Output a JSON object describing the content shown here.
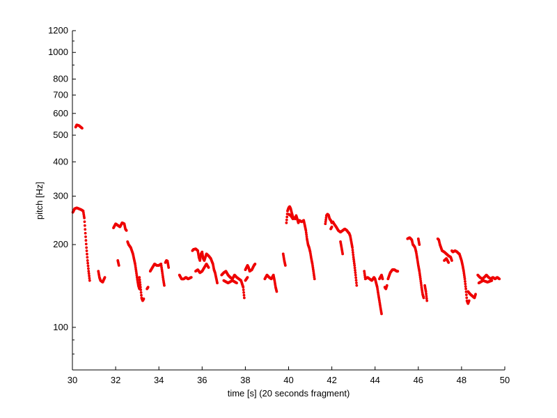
{
  "chart_data": {
    "type": "scatter",
    "xlabel": "time [s] (20 seconds fragment)",
    "ylabel": "pitch [Hz]",
    "xlim": [
      30,
      50
    ],
    "ylim": [
      70,
      1200
    ],
    "yscale": "log",
    "grid": false,
    "marker_color": "#ee0000",
    "xticks": [
      30,
      32,
      34,
      36,
      38,
      40,
      42,
      44,
      46,
      48,
      50
    ],
    "xtick_labels": [
      "30",
      "32",
      "34",
      "36",
      "38",
      "40",
      "42",
      "44",
      "46",
      "48",
      "50"
    ],
    "yticks": [
      100,
      200,
      300,
      400,
      500,
      600,
      700,
      800,
      1000,
      1200
    ],
    "ytick_labels": [
      "100",
      "200",
      "300",
      "400",
      "500",
      "600",
      "700",
      "800",
      "1000",
      "1200"
    ],
    "segments": [
      {
        "points": [
          [
            30.02,
            262
          ],
          [
            30.1,
            270
          ],
          [
            30.2,
            272
          ],
          [
            30.3,
            270
          ],
          [
            30.4,
            268
          ],
          [
            30.5,
            265
          ],
          [
            30.55,
            250
          ],
          [
            30.6,
            220
          ],
          [
            30.65,
            195
          ],
          [
            30.7,
            175
          ],
          [
            30.75,
            160
          ],
          [
            30.8,
            148
          ]
        ]
      },
      {
        "points": [
          [
            30.15,
            535
          ],
          [
            30.2,
            545
          ],
          [
            30.3,
            542
          ],
          [
            30.45,
            530
          ]
        ]
      },
      {
        "points": [
          [
            31.2,
            160
          ],
          [
            31.25,
            152
          ],
          [
            31.3,
            148
          ],
          [
            31.4,
            146
          ],
          [
            31.5,
            152
          ]
        ]
      },
      {
        "points": [
          [
            31.9,
            230
          ],
          [
            32.0,
            238
          ],
          [
            32.1,
            235
          ],
          [
            32.2,
            232
          ],
          [
            32.3,
            240
          ],
          [
            32.4,
            238
          ],
          [
            32.45,
            228
          ],
          [
            32.5,
            225
          ]
        ]
      },
      {
        "points": [
          [
            32.1,
            175
          ],
          [
            32.15,
            168
          ]
        ]
      },
      {
        "points": [
          [
            32.55,
            205
          ],
          [
            32.6,
            200
          ],
          [
            32.7,
            195
          ],
          [
            32.8,
            185
          ],
          [
            32.9,
            170
          ],
          [
            32.95,
            160
          ],
          [
            33.0,
            150
          ],
          [
            33.05,
            142
          ],
          [
            33.1,
            138
          ]
        ]
      },
      {
        "points": [
          [
            33.1,
            152
          ],
          [
            33.15,
            140
          ],
          [
            33.2,
            128
          ],
          [
            33.25,
            125
          ],
          [
            33.3,
            127
          ]
        ]
      },
      {
        "points": [
          [
            33.45,
            138
          ],
          [
            33.5,
            140
          ]
        ]
      },
      {
        "points": [
          [
            33.6,
            160
          ],
          [
            33.7,
            165
          ],
          [
            33.8,
            170
          ],
          [
            33.9,
            168
          ],
          [
            34.0,
            168
          ],
          [
            34.1,
            170
          ],
          [
            34.15,
            160
          ],
          [
            34.2,
            150
          ],
          [
            34.25,
            142
          ]
        ]
      },
      {
        "points": [
          [
            34.3,
            172
          ],
          [
            34.35,
            175
          ],
          [
            34.4,
            174
          ],
          [
            34.45,
            165
          ]
        ]
      },
      {
        "points": [
          [
            34.95,
            155
          ],
          [
            35.05,
            150
          ],
          [
            35.15,
            150
          ],
          [
            35.25,
            152
          ],
          [
            35.35,
            150
          ],
          [
            35.5,
            152
          ]
        ]
      },
      {
        "points": [
          [
            35.55,
            190
          ],
          [
            35.6,
            192
          ],
          [
            35.7,
            193
          ],
          [
            35.8,
            190
          ],
          [
            35.85,
            180
          ],
          [
            35.9,
            175
          ],
          [
            35.95,
            185
          ],
          [
            36.0,
            188
          ],
          [
            36.05,
            178
          ],
          [
            36.1,
            175
          ],
          [
            36.2,
            185
          ],
          [
            36.3,
            182
          ],
          [
            36.4,
            178
          ],
          [
            36.5,
            170
          ],
          [
            36.55,
            162
          ],
          [
            36.6,
            158
          ],
          [
            36.7,
            145
          ]
        ]
      },
      {
        "points": [
          [
            35.7,
            160
          ],
          [
            35.8,
            162
          ],
          [
            35.9,
            158
          ],
          [
            36.0,
            160
          ],
          [
            36.1,
            165
          ],
          [
            36.2,
            170
          ],
          [
            36.3,
            165
          ]
        ]
      },
      {
        "points": [
          [
            36.9,
            155
          ],
          [
            37.0,
            158
          ],
          [
            37.1,
            160
          ],
          [
            37.2,
            155
          ],
          [
            37.3,
            152
          ],
          [
            37.4,
            150
          ],
          [
            37.5,
            155
          ],
          [
            37.6,
            152
          ],
          [
            37.7,
            150
          ],
          [
            37.8,
            148
          ],
          [
            37.9,
            140
          ],
          [
            37.95,
            128
          ]
        ]
      },
      {
        "points": [
          [
            37.0,
            148
          ],
          [
            37.2,
            145
          ],
          [
            37.4,
            148
          ],
          [
            37.6,
            145
          ]
        ]
      },
      {
        "points": [
          [
            38.0,
            162
          ],
          [
            38.05,
            165
          ],
          [
            38.1,
            168
          ],
          [
            38.15,
            165
          ],
          [
            38.2,
            160
          ],
          [
            38.3,
            162
          ],
          [
            38.4,
            168
          ],
          [
            38.45,
            170
          ]
        ]
      },
      {
        "points": [
          [
            38.0,
            148
          ],
          [
            38.1,
            152
          ]
        ]
      },
      {
        "points": [
          [
            38.9,
            150
          ],
          [
            39.0,
            155
          ],
          [
            39.1,
            152
          ],
          [
            39.2,
            150
          ],
          [
            39.3,
            155
          ],
          [
            39.35,
            148
          ],
          [
            39.4,
            140
          ],
          [
            39.45,
            135
          ]
        ]
      },
      {
        "points": [
          [
            39.75,
            185
          ],
          [
            39.8,
            175
          ],
          [
            39.85,
            168
          ]
        ]
      },
      {
        "points": [
          [
            39.9,
            240
          ],
          [
            39.95,
            265
          ],
          [
            40.0,
            272
          ],
          [
            40.05,
            275
          ],
          [
            40.1,
            270
          ],
          [
            40.15,
            260
          ],
          [
            40.2,
            252
          ],
          [
            40.3,
            248
          ],
          [
            40.35,
            255
          ],
          [
            40.4,
            248
          ],
          [
            40.45,
            240
          ],
          [
            40.5,
            245
          ],
          [
            40.6,
            242
          ],
          [
            40.7,
            245
          ],
          [
            40.75,
            235
          ],
          [
            40.8,
            225
          ],
          [
            40.85,
            210
          ],
          [
            40.9,
            200
          ],
          [
            40.95,
            195
          ],
          [
            41.0,
            188
          ],
          [
            41.05,
            178
          ],
          [
            41.1,
            170
          ],
          [
            41.15,
            160
          ],
          [
            41.2,
            150
          ]
        ]
      },
      {
        "points": [
          [
            40.0,
            258
          ],
          [
            40.1,
            255
          ],
          [
            40.2,
            248
          ]
        ]
      },
      {
        "points": [
          [
            41.7,
            238
          ],
          [
            41.75,
            255
          ],
          [
            41.8,
            258
          ],
          [
            41.85,
            256
          ],
          [
            41.9,
            248
          ],
          [
            41.95,
            245
          ],
          [
            42.0,
            240
          ],
          [
            42.05,
            242
          ],
          [
            42.1,
            238
          ],
          [
            42.2,
            232
          ],
          [
            42.3,
            225
          ],
          [
            42.4,
            222
          ],
          [
            42.5,
            225
          ],
          [
            42.6,
            228
          ],
          [
            42.7,
            225
          ],
          [
            42.75,
            222
          ],
          [
            42.8,
            220
          ],
          [
            42.85,
            215
          ],
          [
            42.9,
            205
          ],
          [
            42.95,
            195
          ],
          [
            43.0,
            180
          ],
          [
            43.05,
            168
          ],
          [
            43.1,
            155
          ],
          [
            43.15,
            142
          ]
        ]
      },
      {
        "points": [
          [
            41.95,
            228
          ],
          [
            42.0,
            232
          ]
        ]
      },
      {
        "points": [
          [
            42.4,
            205
          ],
          [
            42.45,
            195
          ],
          [
            42.5,
            185
          ]
        ]
      },
      {
        "points": [
          [
            43.5,
            160
          ],
          [
            43.55,
            150
          ],
          [
            43.65,
            152
          ],
          [
            43.75,
            150
          ],
          [
            43.85,
            148
          ],
          [
            43.95,
            152
          ],
          [
            44.0,
            150
          ],
          [
            44.05,
            145
          ],
          [
            44.1,
            140
          ],
          [
            44.15,
            132
          ],
          [
            44.2,
            125
          ],
          [
            44.25,
            118
          ],
          [
            44.3,
            112
          ]
        ]
      },
      {
        "points": [
          [
            44.2,
            150
          ],
          [
            44.3,
            155
          ],
          [
            44.35,
            150
          ]
        ]
      },
      {
        "points": [
          [
            44.45,
            140
          ],
          [
            44.5,
            138
          ],
          [
            44.55,
            142
          ]
        ]
      },
      {
        "points": [
          [
            44.6,
            150
          ],
          [
            44.7,
            158
          ],
          [
            44.8,
            162
          ],
          [
            44.9,
            162
          ],
          [
            45.0,
            160
          ],
          [
            45.05,
            160
          ]
        ]
      },
      {
        "points": [
          [
            45.5,
            210
          ],
          [
            45.6,
            212
          ],
          [
            45.7,
            208
          ],
          [
            45.75,
            200
          ],
          [
            45.8,
            198
          ],
          [
            45.85,
            195
          ],
          [
            45.9,
            188
          ],
          [
            45.95,
            178
          ],
          [
            46.0,
            168
          ],
          [
            46.05,
            160
          ],
          [
            46.1,
            150
          ],
          [
            46.15,
            140
          ],
          [
            46.2,
            132
          ],
          [
            46.25,
            128
          ]
        ]
      },
      {
        "points": [
          [
            46.0,
            210
          ],
          [
            46.05,
            200
          ]
        ]
      },
      {
        "points": [
          [
            46.3,
            142
          ],
          [
            46.35,
            135
          ],
          [
            46.4,
            125
          ]
        ]
      },
      {
        "points": [
          [
            46.9,
            210
          ],
          [
            46.95,
            208
          ],
          [
            47.0,
            200
          ],
          [
            47.05,
            195
          ],
          [
            47.1,
            190
          ],
          [
            47.2,
            188
          ],
          [
            47.3,
            185
          ],
          [
            47.4,
            182
          ],
          [
            47.5,
            180
          ],
          [
            47.55,
            175
          ]
        ]
      },
      {
        "points": [
          [
            47.2,
            175
          ],
          [
            47.3,
            178
          ],
          [
            47.4,
            172
          ]
        ]
      },
      {
        "points": [
          [
            47.55,
            190
          ],
          [
            47.6,
            188
          ],
          [
            47.7,
            190
          ],
          [
            47.8,
            188
          ],
          [
            47.85,
            186
          ],
          [
            47.9,
            185
          ],
          [
            47.95,
            180
          ],
          [
            48.0,
            175
          ],
          [
            48.05,
            168
          ],
          [
            48.1,
            160
          ],
          [
            48.15,
            150
          ],
          [
            48.2,
            138
          ],
          [
            48.25,
            125
          ],
          [
            48.3,
            122
          ],
          [
            48.35,
            125
          ]
        ]
      },
      {
        "points": [
          [
            48.3,
            135
          ],
          [
            48.4,
            132
          ],
          [
            48.5,
            130
          ],
          [
            48.6,
            128
          ],
          [
            48.65,
            132
          ]
        ]
      },
      {
        "points": [
          [
            48.75,
            155
          ],
          [
            48.85,
            152
          ],
          [
            48.95,
            150
          ],
          [
            49.05,
            152
          ],
          [
            49.15,
            155
          ],
          [
            49.25,
            152
          ],
          [
            49.35,
            150
          ],
          [
            49.45,
            152
          ],
          [
            49.55,
            150
          ],
          [
            49.65,
            152
          ],
          [
            49.75,
            150
          ]
        ]
      },
      {
        "points": [
          [
            48.8,
            145
          ],
          [
            49.0,
            148
          ],
          [
            49.2,
            146
          ],
          [
            49.4,
            148
          ]
        ]
      }
    ]
  }
}
